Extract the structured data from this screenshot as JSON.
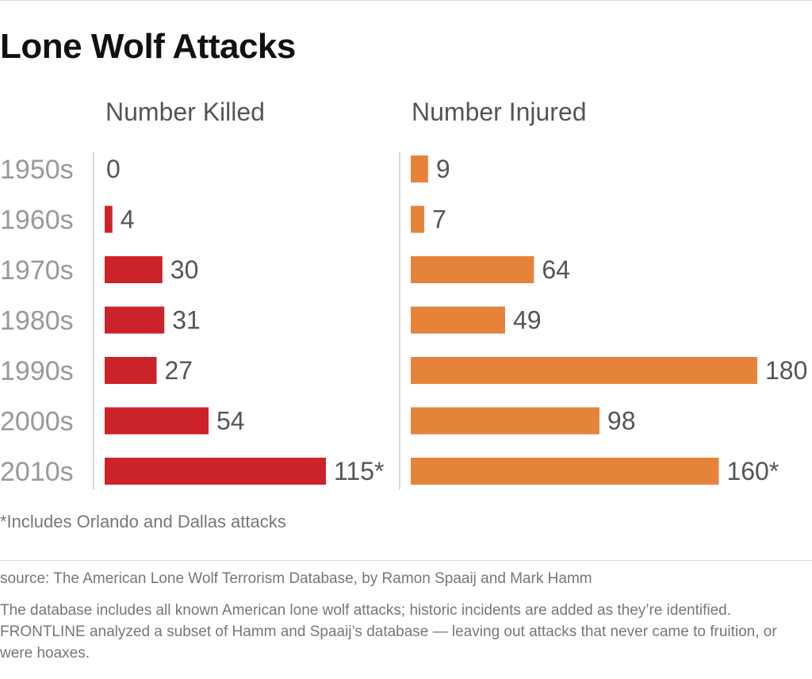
{
  "title": "Lone Wolf Attacks",
  "footnote": "*Includes Orlando and Dallas attacks",
  "source": "source: The American Lone Wolf Terrorism Database, by Ramon Spaaij and Mark Hamm",
  "note": "The database includes all known American lone wolf attacks; historic incidents are added as they’re identified. FRONTLINE analyzed a subset of Hamm and Spaaij’s database — leaving out attacks that never came to fruition, or were hoaxes.",
  "colors": {
    "killed": "#cc2229",
    "injured": "#e6833a",
    "axis": "#cccccc",
    "label": "#555555",
    "category": "#999999"
  },
  "chart_data": [
    {
      "type": "bar",
      "orientation": "horizontal",
      "title": "Number Killed",
      "categories": [
        "1950s",
        "1960s",
        "1970s",
        "1980s",
        "1990s",
        "2000s",
        "2010s"
      ],
      "values": [
        0,
        4,
        30,
        31,
        27,
        54,
        115
      ],
      "labels": [
        "0",
        "4",
        "30",
        "31",
        "27",
        "54",
        "115*"
      ],
      "xlim": [
        0,
        115
      ]
    },
    {
      "type": "bar",
      "orientation": "horizontal",
      "title": "Number Injured",
      "categories": [
        "1950s",
        "1960s",
        "1970s",
        "1980s",
        "1990s",
        "2000s",
        "2010s"
      ],
      "values": [
        9,
        7,
        64,
        49,
        180,
        98,
        160
      ],
      "labels": [
        "9",
        "7",
        "64",
        "49",
        "180",
        "98",
        "160*"
      ],
      "xlim": [
        0,
        180
      ]
    }
  ]
}
